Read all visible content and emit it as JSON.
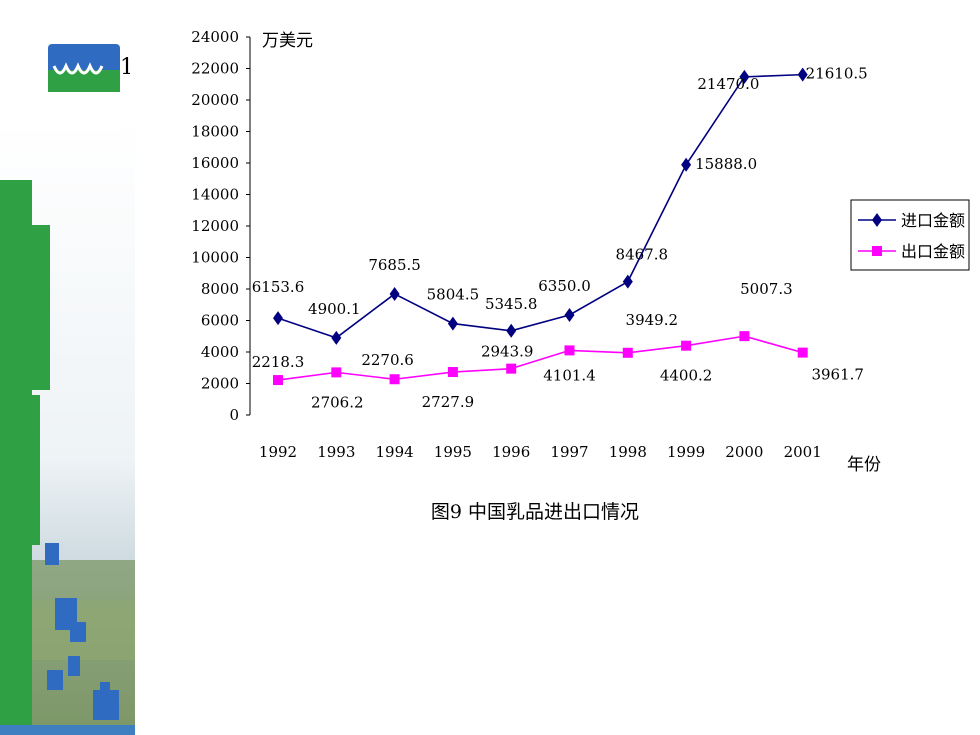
{
  "colors": {
    "import_series": "#000080",
    "export_series": "#ff00ff",
    "green_band": "#2fa043",
    "block_blue": "#2f6bc0"
  },
  "logo": {
    "icon": "cow-logo-icon",
    "glyph": "1"
  },
  "chart_data": {
    "type": "line",
    "title": "图9 中国乳品进出口情况",
    "xlabel": "年份",
    "ylabel": "万美元",
    "categories": [
      "1992",
      "1993",
      "1994",
      "1995",
      "1996",
      "1997",
      "1998",
      "1999",
      "2000",
      "2001"
    ],
    "ylim": [
      0,
      24000
    ],
    "yticks": [
      "0",
      "2000",
      "4000",
      "6000",
      "8000",
      "10000",
      "12000",
      "14000",
      "16000",
      "18000",
      "20000",
      "22000",
      "24000"
    ],
    "grid": false,
    "legend_position": "right",
    "series": [
      {
        "name": "进口金额",
        "marker": "diamond",
        "values": [
          6153.6,
          4900.1,
          7685.5,
          5804.5,
          5345.8,
          6350.0,
          8467.8,
          15888.0,
          21470.0,
          21610.5
        ],
        "labels": [
          "6153.6",
          "4900.1",
          "7685.5",
          "5804.5",
          "5345.8",
          "6350.0",
          "8467.8",
          "15888.0",
          "21470.0",
          "21610.5"
        ]
      },
      {
        "name": "出口金额",
        "marker": "square",
        "values": [
          2218.3,
          2706.2,
          2270.6,
          2727.9,
          2943.9,
          4101.4,
          3949.2,
          4400.2,
          5007.3,
          3961.7
        ],
        "labels": [
          "2218.3",
          "2706.2",
          "2270.6",
          "2727.9",
          "2943.9",
          "4101.4",
          "3949.2",
          "4400.2",
          "5007.3",
          "3961.7"
        ]
      }
    ]
  }
}
